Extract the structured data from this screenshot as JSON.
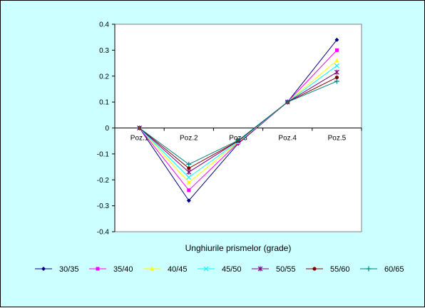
{
  "chart_data": {
    "type": "line",
    "title": "",
    "xlabel": "Unghiurile prismelor (grade)",
    "ylabel": "",
    "categories": [
      "Poz.1",
      "Poz.2",
      "Poz.3",
      "Poz.4",
      "Poz.5"
    ],
    "ylim": [
      -0.4,
      0.4
    ],
    "yticks": [
      0.4,
      0.3,
      0.2,
      0.1,
      0,
      -0.1,
      -0.2,
      -0.3,
      -0.4
    ],
    "ytick_labels": [
      "0.4",
      "0.3",
      "0.2",
      "0.1",
      "0",
      "-0.1",
      "-0.2",
      "-0.3",
      "-0.4"
    ],
    "grid": false,
    "legend_position": "bottom",
    "background_color": "#ccffff",
    "plot_background_color": "#ffffff",
    "series": [
      {
        "name": "30/35",
        "color": "#000080",
        "marker": "diamond",
        "values": [
          0,
          -0.28,
          -0.06,
          0.1,
          0.34
        ]
      },
      {
        "name": "35/40",
        "color": "#ff00ff",
        "marker": "square",
        "values": [
          0,
          -0.24,
          -0.057,
          0.1,
          0.3
        ]
      },
      {
        "name": "40/45",
        "color": "#ffff00",
        "marker": "triangle",
        "values": [
          0,
          -0.21,
          -0.055,
          0.1,
          0.26
        ]
      },
      {
        "name": "45/50",
        "color": "#00ffff",
        "marker": "x",
        "values": [
          0,
          -0.19,
          -0.053,
          0.1,
          0.24
        ]
      },
      {
        "name": "50/55",
        "color": "#800080",
        "marker": "star",
        "values": [
          0,
          -0.17,
          -0.05,
          0.1,
          0.215
        ]
      },
      {
        "name": "55/60",
        "color": "#800000",
        "marker": "circle",
        "values": [
          0,
          -0.155,
          -0.05,
          0.1,
          0.195
        ]
      },
      {
        "name": "60/65",
        "color": "#008080",
        "marker": "plus",
        "values": [
          0,
          -0.14,
          -0.048,
          0.1,
          0.18
        ]
      }
    ]
  }
}
